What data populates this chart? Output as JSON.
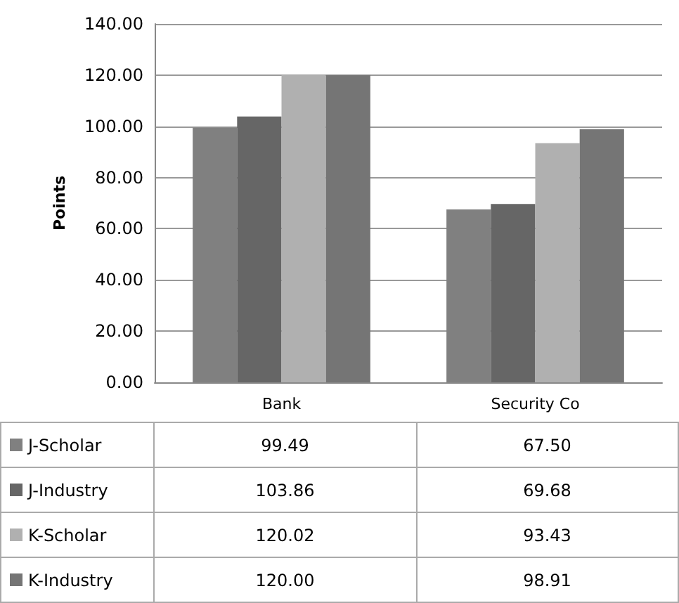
{
  "chart_data": {
    "type": "bar",
    "ylabel": "Points",
    "categories": [
      "Bank",
      "Security Co"
    ],
    "series": [
      {
        "name": "J-Scholar",
        "color": "#808080",
        "values": [
          99.49,
          67.5
        ],
        "value_labels": [
          "99.49",
          "67.50"
        ]
      },
      {
        "name": "J-Industry",
        "color": "#666666",
        "values": [
          103.86,
          69.68
        ],
        "value_labels": [
          "103.86",
          "69.68"
        ]
      },
      {
        "name": "K-Scholar",
        "color": "#b0b0b0",
        "values": [
          120.02,
          93.43
        ],
        "value_labels": [
          "120.02",
          "93.43"
        ]
      },
      {
        "name": "K-Industry",
        "color": "#757575",
        "values": [
          120,
          98.91
        ],
        "value_labels": [
          "120.00",
          "98.91"
        ]
      }
    ],
    "ylim": [
      0,
      140
    ],
    "yticks": [
      {
        "value": 0,
        "label": "0.00"
      },
      {
        "value": 20,
        "label": "20.00"
      },
      {
        "value": 40,
        "label": "40.00"
      },
      {
        "value": 60,
        "label": "60.00"
      },
      {
        "value": 80,
        "label": "80.00"
      },
      {
        "value": 100,
        "label": "100.00"
      },
      {
        "value": 120,
        "label": "120.00"
      },
      {
        "value": 140,
        "label": "140.00"
      }
    ],
    "grid": "y",
    "legend": "bottom left"
  }
}
